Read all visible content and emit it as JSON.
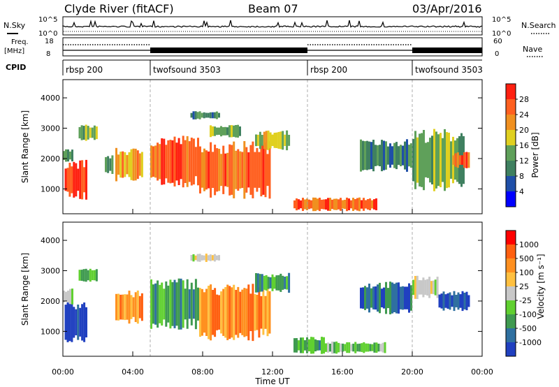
{
  "header": {
    "station": "Clyde River (fitACF)",
    "beam": "Beam 07",
    "date": "03/Apr/2016"
  },
  "noise_panel": {
    "left_label": "N.Sky",
    "right_label": "N.Search",
    "tick_top": "10^5",
    "tick_bottom": "10^0"
  },
  "freq_panel": {
    "left_label_1": "Freq.",
    "left_label_2": "[MHz]",
    "left_tick_top": "18",
    "left_tick_bottom": "8",
    "right_label": "Nave",
    "right_tick_top": "60",
    "right_tick_bottom": "0"
  },
  "cpid": {
    "label": "CPID",
    "segments": [
      {
        "name": "rbsp 200",
        "start_h": 0,
        "end_h": 5
      },
      {
        "name": "twofsound 3503",
        "start_h": 5,
        "end_h": 14
      },
      {
        "name": "rbsp 200",
        "start_h": 14,
        "end_h": 20
      },
      {
        "name": "twofsound 3503",
        "start_h": 20,
        "end_h": 24
      }
    ]
  },
  "x_axis": {
    "label": "Time UT",
    "ticks": [
      "00:00",
      "04:00",
      "08:00",
      "12:00",
      "16:00",
      "20:00",
      "00:00"
    ],
    "range_h": [
      0,
      24
    ]
  },
  "y_axis": {
    "label": "Slant Range [km]",
    "ticks": [
      "1000",
      "2000",
      "3000",
      "4000"
    ],
    "range_km": [
      180,
      4600
    ]
  },
  "power_colorbar": {
    "title": "Power [dB]",
    "ticks": [
      "4",
      "8",
      "12",
      "16",
      "20",
      "24",
      "28"
    ],
    "colors": [
      "#0000ff",
      "#1f4fa8",
      "#3f8060",
      "#5fa05a",
      "#e0d020",
      "#f09020",
      "#ff6020",
      "#ff2010"
    ]
  },
  "velocity_colorbar": {
    "title": "Velocity [m s⁻¹]",
    "ticks": [
      "1000",
      "500",
      "100",
      "25",
      "-25",
      "-100",
      "-500",
      "-1000"
    ],
    "colors": [
      "#2040c0",
      "#2f70a0",
      "#3f9a50",
      "#60d030",
      "#c8c8c8",
      "#ffc040",
      "#ff9020",
      "#ff6010",
      "#ff0000"
    ]
  },
  "chart_data": {
    "type": "heatmap",
    "x_units": "hours UT",
    "y_units": "km",
    "power_blobs": [
      {
        "t0": 0.1,
        "t1": 1.4,
        "r0": 700,
        "r1": 1900,
        "level": 7
      },
      {
        "t0": 0.0,
        "t1": 0.6,
        "r0": 1900,
        "r1": 2300,
        "level": 3
      },
      {
        "t0": 0.9,
        "t1": 2.0,
        "r0": 2600,
        "r1": 3100,
        "level": 3
      },
      {
        "t0": 2.4,
        "t1": 2.9,
        "r0": 1500,
        "r1": 2100,
        "level": 3
      },
      {
        "t0": 3.0,
        "t1": 4.6,
        "r0": 1300,
        "r1": 2300,
        "level": 5
      },
      {
        "t0": 5.0,
        "t1": 7.8,
        "r0": 1100,
        "r1": 2700,
        "level": 6
      },
      {
        "t0": 7.3,
        "t1": 9.0,
        "r0": 3300,
        "r1": 3550,
        "level": 2
      },
      {
        "t0": 7.8,
        "t1": 11.9,
        "r0": 750,
        "r1": 2500,
        "level": 6
      },
      {
        "t0": 8.4,
        "t1": 10.2,
        "r0": 2700,
        "r1": 3100,
        "level": 3
      },
      {
        "t0": 11.0,
        "t1": 13.0,
        "r0": 2300,
        "r1": 2900,
        "level": 4
      },
      {
        "t0": 13.2,
        "t1": 18.0,
        "r0": 280,
        "r1": 700,
        "level": 6
      },
      {
        "t0": 17.0,
        "t1": 20.0,
        "r0": 1600,
        "r1": 2600,
        "level": 2
      },
      {
        "t0": 20.0,
        "t1": 23.0,
        "r0": 1000,
        "r1": 2900,
        "level": 3
      },
      {
        "t0": 22.3,
        "t1": 23.3,
        "r0": 1700,
        "r1": 2200,
        "level": 6
      }
    ],
    "velocity_blobs": [
      {
        "t0": 0.1,
        "t1": 1.4,
        "r0": 700,
        "r1": 1900,
        "level": 0
      },
      {
        "t0": 0.0,
        "t1": 0.6,
        "r0": 1900,
        "r1": 2400,
        "level": 4
      },
      {
        "t0": 0.9,
        "t1": 2.0,
        "r0": 2600,
        "r1": 3100,
        "level": 2
      },
      {
        "t0": 3.0,
        "t1": 4.6,
        "r0": 1300,
        "r1": 2300,
        "level": 6
      },
      {
        "t0": 5.0,
        "t1": 7.8,
        "r0": 1100,
        "r1": 2700,
        "level": 2
      },
      {
        "t0": 7.8,
        "t1": 11.9,
        "r0": 750,
        "r1": 2500,
        "level": 6
      },
      {
        "t0": 7.3,
        "t1": 9.0,
        "r0": 3300,
        "r1": 3550,
        "level": 4
      },
      {
        "t0": 11.0,
        "t1": 13.0,
        "r0": 2300,
        "r1": 2900,
        "level": 2
      },
      {
        "t0": 13.2,
        "t1": 15.0,
        "r0": 280,
        "r1": 800,
        "level": 2
      },
      {
        "t0": 15.0,
        "t1": 18.5,
        "r0": 280,
        "r1": 650,
        "level": 3
      },
      {
        "t0": 17.0,
        "t1": 20.0,
        "r0": 1600,
        "r1": 2600,
        "level": 1
      },
      {
        "t0": 20.0,
        "t1": 21.5,
        "r0": 2100,
        "r1": 2800,
        "level": 4
      },
      {
        "t0": 21.5,
        "t1": 23.3,
        "r0": 1700,
        "r1": 2300,
        "level": 0
      }
    ]
  }
}
